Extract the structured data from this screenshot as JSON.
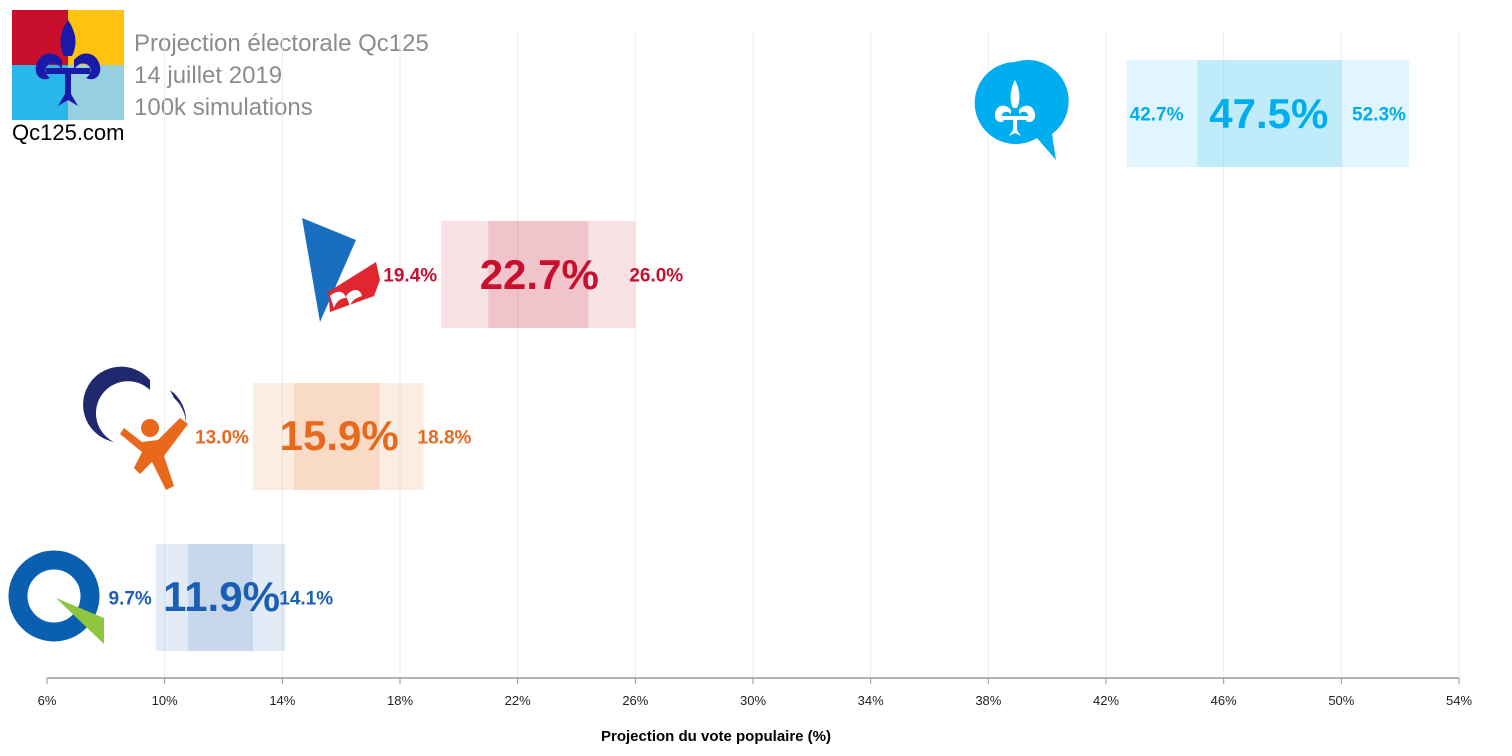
{
  "header": {
    "line1": "Projection électorale Qc125",
    "line2": "14 juillet 2019",
    "line3": "100k simulations",
    "brand": "Qc125.com"
  },
  "colors": {
    "caq": "#00aeef",
    "plq": "#c8102e",
    "qs": "#e8681c",
    "pq": "#1a5fb4",
    "tick": "#222222",
    "axis": "#9a9a9a",
    "grid": "#ececec"
  },
  "chart_data": {
    "type": "bar",
    "xlabel": "Projection du vote populaire (%)",
    "xlim": [
      6,
      54
    ],
    "xticks": [
      6,
      10,
      14,
      18,
      22,
      26,
      30,
      34,
      38,
      42,
      46,
      50,
      54
    ],
    "xtick_labels": [
      "6%",
      "10%",
      "14%",
      "18%",
      "22%",
      "26%",
      "30%",
      "34%",
      "38%",
      "42%",
      "46%",
      "50%",
      "54%"
    ],
    "grid": "vertical",
    "series": [
      {
        "key": "caq",
        "icon": "caq-logo-icon",
        "low": 42.7,
        "mid": 47.5,
        "high": 52.3,
        "inner_low": 45.1,
        "inner_high": 50.0,
        "low_label": "42.7%",
        "mid_label": "47.5%",
        "high_label": "52.3%"
      },
      {
        "key": "plq",
        "icon": "plq-logo-icon",
        "low": 19.4,
        "mid": 22.7,
        "high": 26.0,
        "inner_low": 21.0,
        "inner_high": 24.4,
        "low_label": "19.4%",
        "mid_label": "22.7%",
        "high_label": "26.0%"
      },
      {
        "key": "qs",
        "icon": "qs-logo-icon",
        "low": 13.0,
        "mid": 15.9,
        "high": 18.8,
        "inner_low": 14.4,
        "inner_high": 17.3,
        "low_label": "13.0%",
        "mid_label": "15.9%",
        "high_label": "18.8%"
      },
      {
        "key": "pq",
        "icon": "pq-logo-icon",
        "low": 9.7,
        "mid": 11.9,
        "high": 14.1,
        "inner_low": 10.8,
        "inner_high": 13.0,
        "low_label": "9.7%",
        "mid_label": "11.9%",
        "high_label": "14.1%"
      }
    ]
  }
}
